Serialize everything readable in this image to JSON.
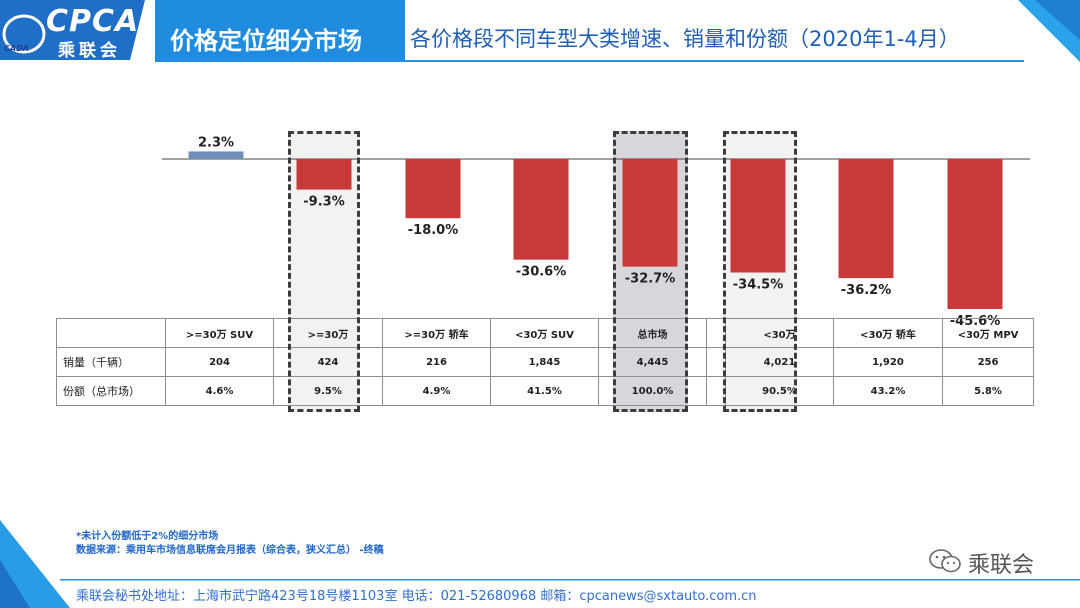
{
  "header": {
    "logo_text": "CPCA",
    "logo_sub": "乘联会",
    "logo_small": "CADA",
    "title_main": "价格定位细分市场",
    "title_sub": "各价格段不同车型大类增速、销量和份额（2020年1-4月）"
  },
  "chart_data": {
    "type": "bar",
    "categories": [
      ">=30万 SUV",
      ">=30万",
      ">=30万 轿车",
      "<30万 SUV",
      "总市场",
      "<30万",
      "<30万 轿车",
      "<30万 MPV"
    ],
    "values": [
      2.3,
      -9.3,
      -18.0,
      -30.6,
      -32.7,
      -34.5,
      -36.2,
      -45.6
    ],
    "value_labels": [
      "2.3%",
      "-9.3%",
      "-18.0%",
      "-30.6%",
      "-32.7%",
      "-34.5%",
      "-36.2%",
      "-45.6%"
    ],
    "ylim": [
      -48,
      3
    ],
    "colors": {
      "positive": "#6f8fba",
      "negative": "#c83a3a"
    },
    "highlighted": [
      1,
      4,
      5
    ]
  },
  "table": {
    "headers": [
      ">=30万 SUV",
      ">=30万",
      ">=30万 轿车",
      "<30万 SUV",
      "总市场",
      "",
      "<30万",
      "<30万 轿车",
      "<30万 MPV"
    ],
    "rows": [
      {
        "label": "销量（千辆）",
        "cells": [
          "204",
          "424",
          "216",
          "1,845",
          "4,445",
          "",
          "4,021",
          "1,920",
          "256"
        ]
      },
      {
        "label": "份额（总市场）",
        "cells": [
          "4.6%",
          "9.5%",
          "4.9%",
          "41.5%",
          "100.0%",
          "",
          "90.5%",
          "43.2%",
          "5.8%"
        ]
      }
    ]
  },
  "notes": {
    "line1": "*未计入份额低于2%的细分市场",
    "line2": "数据来源：乘用车市场信息联席会月报表（综合表，狭义汇总）   -终稿"
  },
  "footer": {
    "address": "乘联会秘书处地址：上海市武宁路423号18号楼1103室  电话：021-52680968   邮箱：cpcanews@sxtauto.com.cn"
  },
  "wechat": {
    "label": "乘联会"
  }
}
